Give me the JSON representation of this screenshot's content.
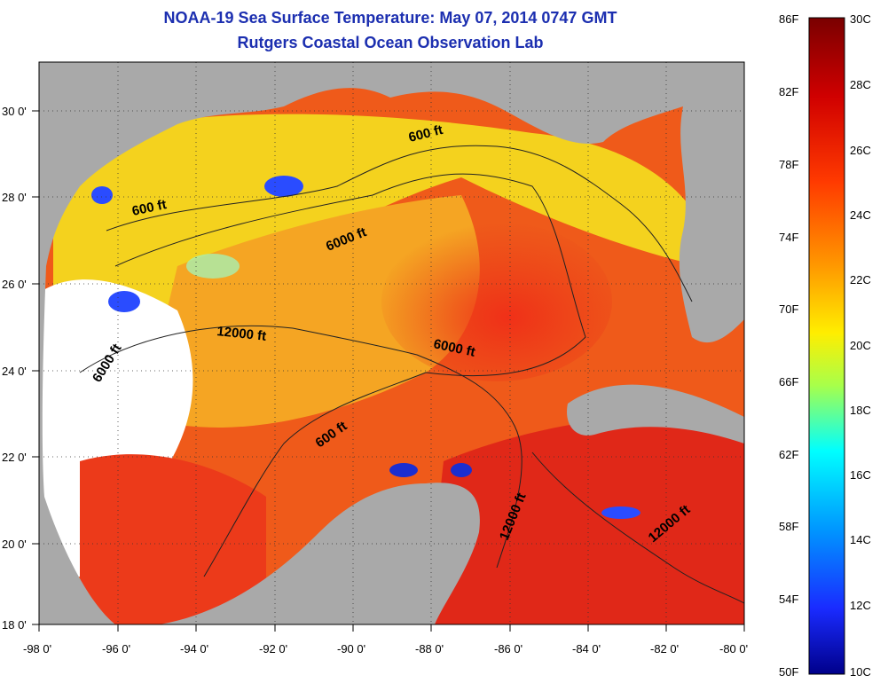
{
  "header": {
    "title_line1": "NOAA-19 Sea Surface Temperature:  May 07, 2014 0747 GMT",
    "title_line2": "Rutgers Coastal Ocean Observation Lab"
  },
  "map": {
    "lon_range": [
      -98,
      -80
    ],
    "lat_range": [
      18,
      31
    ],
    "lon_ticks": [
      "-98 0'",
      "-96 0'",
      "-94 0'",
      "-92 0'",
      "-90 0'",
      "-88 0'",
      "-86 0'",
      "-84 0'",
      "-82 0'",
      "-80 0'"
    ],
    "lat_ticks": [
      "30 0'",
      "28 0'",
      "26 0'",
      "24 0'",
      "22 0'",
      "20 0'",
      "18 0'"
    ],
    "contour_labels": {
      "l600a": "600 ft",
      "l600b": "600 ft",
      "l600c": "600 ft",
      "l6000a": "6000 ft",
      "l6000b": "6000 ft",
      "l6000c": "6000 ft",
      "l12000a": "12000 ft",
      "l12000b": "12000 ft",
      "l12000c": "12000 ft"
    },
    "colors": {
      "land": "#a9a9a9",
      "cloud": "#ffffff",
      "warm": "#e8281a",
      "mid": "#f7a020",
      "cool": "#f2e420"
    }
  },
  "colorbar": {
    "fahrenheit": [
      "86F",
      "82F",
      "78F",
      "74F",
      "70F",
      "66F",
      "62F",
      "58F",
      "54F",
      "50F"
    ],
    "celsius": [
      "30C",
      "28C",
      "26C",
      "24C",
      "22C",
      "20C",
      "18C",
      "16C",
      "14C",
      "12C",
      "10C"
    ]
  }
}
